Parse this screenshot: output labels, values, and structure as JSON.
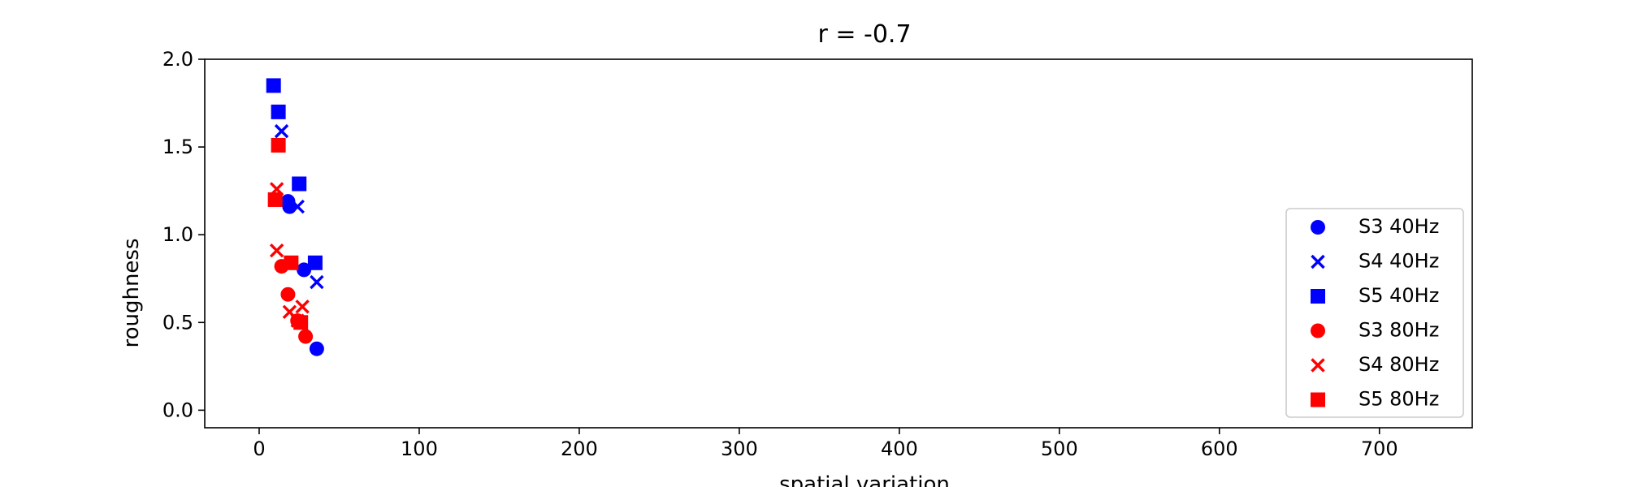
{
  "chart_data": {
    "type": "scatter",
    "title": "r = -0.7",
    "xlabel": "spatial variation",
    "ylabel": "roughness",
    "xlim": [
      -34,
      758
    ],
    "ylim": [
      -0.1,
      2.0
    ],
    "xticks": [
      0,
      100,
      200,
      300,
      400,
      500,
      600,
      700
    ],
    "yticks": [
      0.0,
      0.5,
      1.0,
      1.5,
      2.0
    ],
    "xtick_labels": [
      "0",
      "100",
      "200",
      "300",
      "400",
      "500",
      "600",
      "700"
    ],
    "ytick_labels": [
      "0.0",
      "0.5",
      "1.0",
      "1.5",
      "2.0"
    ],
    "grid": false,
    "legend_position": "right",
    "series": [
      {
        "name": "S3 40Hz",
        "color": "#0000ff",
        "marker": "circle",
        "points": [
          [
            18,
            1.19
          ],
          [
            19,
            1.16
          ],
          [
            28,
            0.8
          ],
          [
            36,
            0.35
          ]
        ]
      },
      {
        "name": "S4 40Hz",
        "color": "#0000ff",
        "marker": "x",
        "points": [
          [
            14,
            1.59
          ],
          [
            24,
            1.16
          ],
          [
            36,
            0.73
          ]
        ]
      },
      {
        "name": "S5 40Hz",
        "color": "#0000ff",
        "marker": "square",
        "points": [
          [
            9,
            1.85
          ],
          [
            12,
            1.7
          ],
          [
            25,
            1.29
          ],
          [
            35,
            0.84
          ]
        ]
      },
      {
        "name": "S3 80Hz",
        "color": "#ff0000",
        "marker": "circle",
        "points": [
          [
            14,
            0.82
          ],
          [
            18,
            0.66
          ],
          [
            24,
            0.51
          ],
          [
            29,
            0.42
          ]
        ]
      },
      {
        "name": "S4 80Hz",
        "color": "#ff0000",
        "marker": "x",
        "points": [
          [
            11,
            1.26
          ],
          [
            11,
            0.91
          ],
          [
            19,
            0.56
          ],
          [
            27,
            0.59
          ],
          [
            24,
            0.51
          ]
        ]
      },
      {
        "name": "S5 80Hz",
        "color": "#ff0000",
        "marker": "square",
        "points": [
          [
            12,
            1.51
          ],
          [
            10,
            1.2
          ],
          [
            20,
            0.84
          ],
          [
            26,
            0.5
          ]
        ]
      }
    ]
  }
}
